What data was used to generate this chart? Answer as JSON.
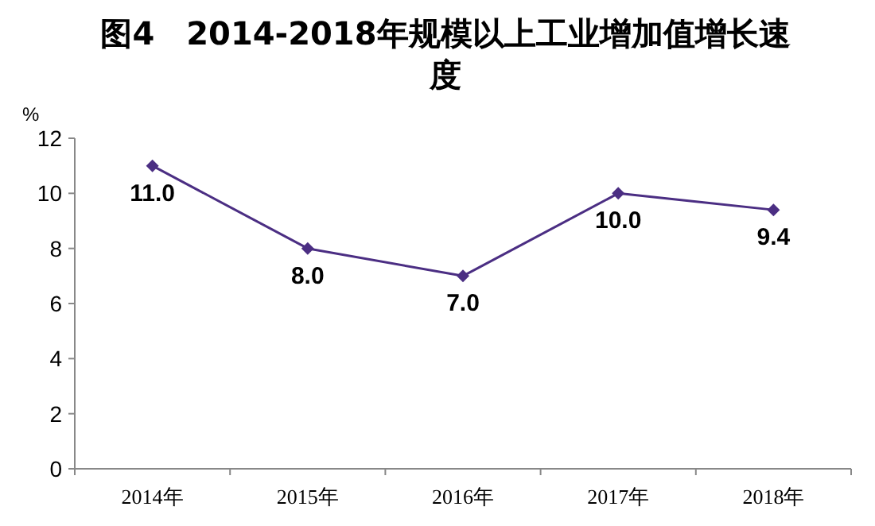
{
  "chart_data": {
    "type": "line",
    "title": "图4　2014-2018年规模以上工业增加值增长速度",
    "ylabel": "%",
    "categories": [
      "2014年",
      "2015年",
      "2016年",
      "2017年",
      "2018年"
    ],
    "series": [
      {
        "color": "#4b2e83",
        "values": [
          11.0,
          8.0,
          7.0,
          10.0,
          9.4
        ],
        "value_labels": [
          "11.0",
          "8.0",
          "7.0",
          "10.0",
          "9.4"
        ]
      }
    ],
    "ylim": [
      0,
      12
    ],
    "yticks": [
      0,
      2,
      4,
      6,
      8,
      10,
      12
    ],
    "marker": "diamond",
    "line_style": "solid"
  }
}
